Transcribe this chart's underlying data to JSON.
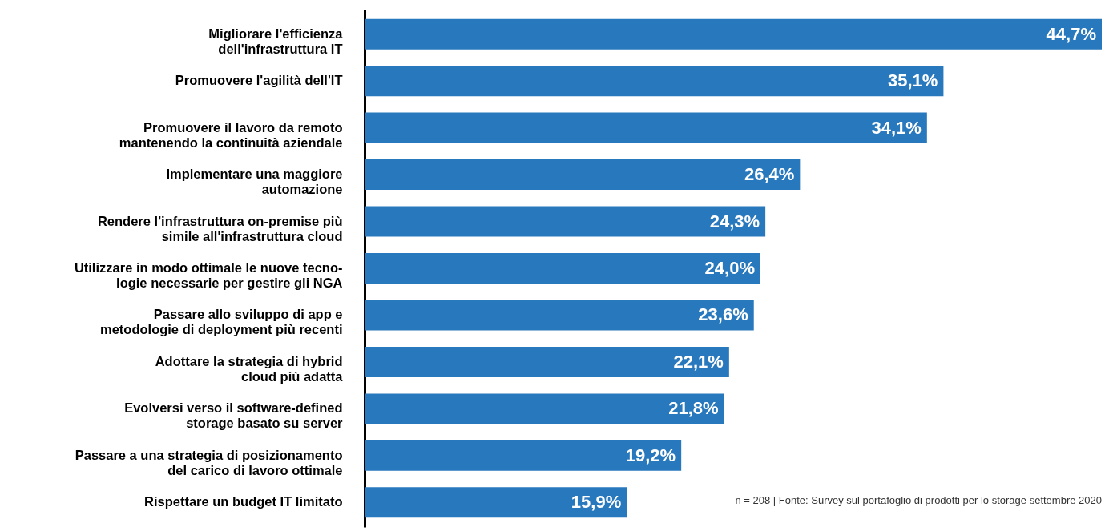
{
  "chart_data": {
    "type": "bar",
    "orientation": "horizontal",
    "categories": [
      "Migliorare l'efficienza\ndell'infrastruttura IT",
      "Promuovere l'agilità dell'IT",
      "Promuovere il lavoro da remoto\nmantenendo la continuità aziendale",
      "Implementare una maggiore\nautomazione",
      "Rendere l'infrastruttura on-premise più\nsimile all'infrastruttura cloud",
      "Utilizzare in modo ottimale le nuove tecno-\nlogie necessarie per gestire gli NGA",
      "Passare allo sviluppo di app e\nmetodologie di deployment più recenti",
      "Adottare la strategia di hybrid\ncloud più adatta",
      "Evolversi verso il software-defined\nstorage basato su server",
      "Passare a una strategia di posizionamento\ndel carico di lavoro ottimale",
      "Rispettare un budget IT limitato"
    ],
    "values": [
      44.7,
      35.1,
      34.1,
      26.4,
      24.3,
      24.0,
      23.6,
      22.1,
      21.8,
      19.2,
      15.9
    ],
    "value_labels": [
      "44,7%",
      "35,1%",
      "34,1%",
      "26,4%",
      "24,3%",
      "24,0%",
      "23,6%",
      "22,1%",
      "21,8%",
      "19,2%",
      "15,9%"
    ],
    "color": "#2878bd",
    "tick_labels": false,
    "annotations": [
      "n = 208 | Fonte: Survey sul portafoglio di prodotti per lo storage settembre 2020"
    ]
  }
}
